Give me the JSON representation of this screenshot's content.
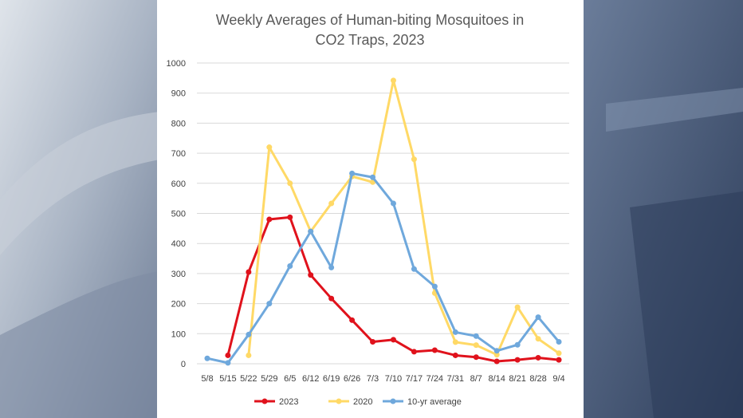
{
  "colors": {
    "series_2023": "#e0121c",
    "series_2020": "#ffd966",
    "series_avg": "#6fa8dc",
    "grid": "#d9d9d9",
    "title": "#595959",
    "background_left": "#b8c2d0",
    "background_right": "#3c4e6e"
  },
  "chart_data": {
    "type": "line",
    "title_lines": [
      "Weekly Averages of Human-biting Mosquitoes in",
      "CO2 Traps, 2023"
    ],
    "xlabel": "",
    "ylabel": "",
    "ylim": [
      0,
      1000
    ],
    "yticks": [
      0,
      100,
      200,
      300,
      400,
      500,
      600,
      700,
      800,
      900,
      1000
    ],
    "grid": true,
    "legend_position": "bottom",
    "x": [
      "5/8",
      "5/15",
      "5/22",
      "5/29",
      "6/5",
      "6/12",
      "6/19",
      "6/26",
      "7/3",
      "7/10",
      "7/17",
      "7/24",
      "7/31",
      "8/7",
      "8/14",
      "8/21",
      "8/28",
      "9/4"
    ],
    "x_tick_text": [
      "5/8",
      "5/15",
      "5/22",
      "5/29",
      "6/5",
      "6/12",
      "6/19",
      "6/26",
      "7/3",
      "7/10",
      "7/17",
      "7/24",
      "7/31",
      "8/7",
      "8/14",
      "8/21",
      "8/28",
      "9/4"
    ],
    "series": [
      {
        "name": "2023",
        "color": "#e0121c",
        "values": [
          null,
          28,
          305,
          480,
          487,
          295,
          217,
          145,
          73,
          80,
          40,
          45,
          28,
          22,
          8,
          13,
          20,
          13
        ]
      },
      {
        "name": "2020",
        "color": "#ffd966",
        "values": [
          null,
          null,
          28,
          720,
          600,
          440,
          533,
          623,
          604,
          942,
          680,
          235,
          72,
          62,
          30,
          188,
          83,
          35
        ]
      },
      {
        "name": "10-yr average",
        "color": "#6fa8dc",
        "values": [
          18,
          3,
          97,
          200,
          325,
          440,
          320,
          633,
          620,
          533,
          315,
          257,
          105,
          92,
          43,
          63,
          155,
          73
        ]
      }
    ]
  }
}
